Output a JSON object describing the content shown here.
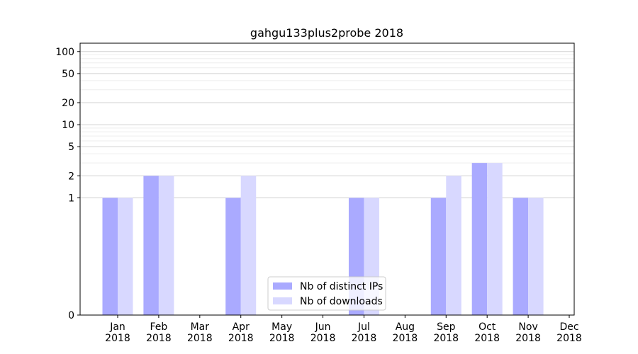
{
  "chart_data": {
    "type": "bar",
    "title": "gahgu133plus2probe 2018",
    "xlabel": "",
    "ylabel": "",
    "y_scale": "symlog",
    "y_ticks": [
      0,
      1,
      2,
      5,
      10,
      20,
      50,
      100
    ],
    "ylim": [
      0,
      130
    ],
    "grid": true,
    "legend_position": "bottom-center",
    "categories": [
      [
        "Jan",
        "2018"
      ],
      [
        "Feb",
        "2018"
      ],
      [
        "Mar",
        "2018"
      ],
      [
        "Apr",
        "2018"
      ],
      [
        "May",
        "2018"
      ],
      [
        "Jun",
        "2018"
      ],
      [
        "Jul",
        "2018"
      ],
      [
        "Aug",
        "2018"
      ],
      [
        "Sep",
        "2018"
      ],
      [
        "Oct",
        "2018"
      ],
      [
        "Nov",
        "2018"
      ],
      [
        "Dec",
        "2018"
      ]
    ],
    "series": [
      {
        "name": "Nb of distinct IPs",
        "color": "#aaaaff",
        "values": [
          1,
          2,
          0,
          1,
          0,
          0,
          1,
          0,
          1,
          3,
          1,
          0
        ]
      },
      {
        "name": "Nb of downloads",
        "color": "#d8d8ff",
        "values": [
          1,
          2,
          0,
          2,
          0,
          0,
          1,
          0,
          2,
          3,
          1,
          0
        ]
      }
    ]
  }
}
